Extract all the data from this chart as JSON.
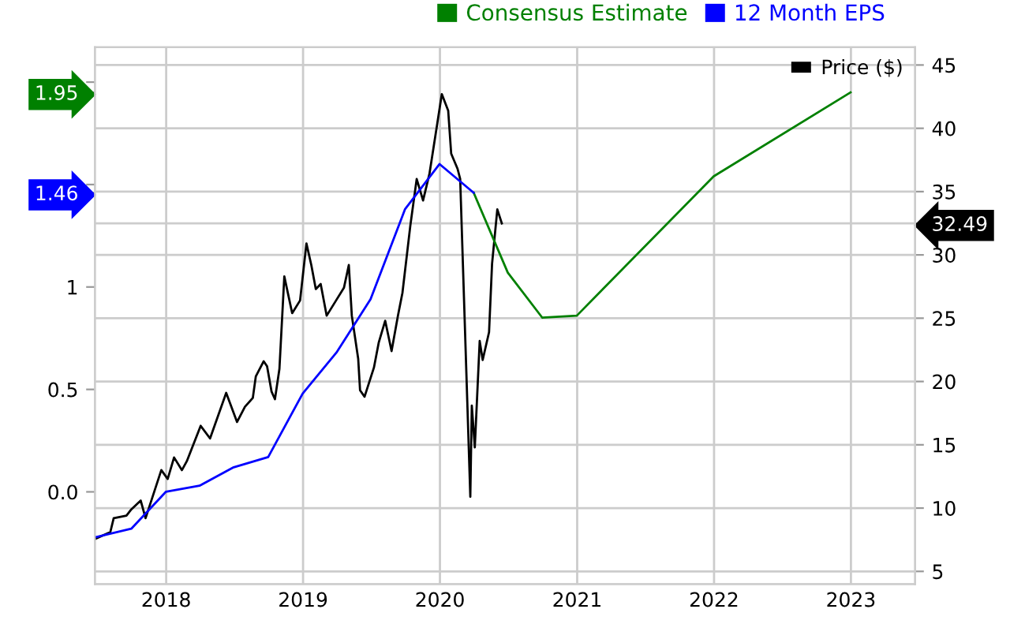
{
  "chart_data": {
    "type": "line",
    "series": [
      {
        "name": "Consensus Estimate",
        "color": "#008000",
        "x": [
          "2020-03-31",
          "2020-06-30",
          "2020-09-30",
          "2020-12-31",
          "2021-12-31",
          "2022-12-31"
        ],
        "values": [
          1.46,
          1.07,
          0.85,
          0.86,
          1.54,
          1.95
        ]
      },
      {
        "name": "12 Month EPS",
        "color": "#0000ff",
        "x": [
          "2017-06-30",
          "2017-09-30",
          "2017-12-31",
          "2018-03-31",
          "2018-06-30",
          "2018-09-30",
          "2018-12-31",
          "2019-03-31",
          "2019-06-30",
          "2019-09-30",
          "2019-12-31",
          "2020-03-31"
        ],
        "values": [
          -0.22,
          -0.18,
          0.0,
          0.03,
          0.12,
          0.17,
          0.48,
          0.68,
          0.94,
          1.38,
          1.6,
          1.46
        ]
      },
      {
        "name": "Price ($)",
        "color": "#000000",
        "axis": "y2",
        "x": [
          "2017-06-28",
          "2017-08-05",
          "2017-08-14",
          "2017-09-17",
          "2017-09-30",
          "2017-10-25",
          "2017-11-07",
          "2017-11-28",
          "2017-12-19",
          "2018-01-05",
          "2018-01-22",
          "2018-02-12",
          "2018-02-25",
          "2018-04-03",
          "2018-04-28",
          "2018-06-10",
          "2018-07-09",
          "2018-07-30",
          "2018-08-20",
          "2018-08-28",
          "2018-09-18",
          "2018-09-27",
          "2018-10-09",
          "2018-10-18",
          "2018-10-30",
          "2018-11-12",
          "2018-12-03",
          "2018-12-24",
          "2019-01-10",
          "2019-01-23",
          "2019-02-04",
          "2019-02-17",
          "2019-03-05",
          "2019-03-30",
          "2019-04-20",
          "2019-05-03",
          "2019-05-11",
          "2019-05-28",
          "2019-06-02",
          "2019-06-14",
          "2019-07-09",
          "2019-07-22",
          "2019-08-08",
          "2019-08-25",
          "2019-09-11",
          "2019-09-23",
          "2019-10-14",
          "2019-10-31",
          "2019-11-17",
          "2019-12-04",
          "2019-12-25",
          "2020-01-06",
          "2020-01-23",
          "2020-01-31",
          "2020-02-17",
          "2020-02-24",
          "2020-03-22",
          "2020-03-26",
          "2020-04-03",
          "2020-04-16",
          "2020-04-24",
          "2020-05-11",
          "2020-05-19",
          "2020-06-02",
          "2020-06-14"
        ],
        "values": [
          7.6,
          8.1,
          9.2,
          9.4,
          9.9,
          10.6,
          9.2,
          11.1,
          13.0,
          12.3,
          14.0,
          13.0,
          13.7,
          16.5,
          15.5,
          19.1,
          16.8,
          18.0,
          18.7,
          20.4,
          21.6,
          21.2,
          19.2,
          18.6,
          21.0,
          28.3,
          25.4,
          26.4,
          30.9,
          29.2,
          27.3,
          27.7,
          25.2,
          26.4,
          27.4,
          29.2,
          25.2,
          21.8,
          19.3,
          18.8,
          21.1,
          23.1,
          24.8,
          22.4,
          25.2,
          27.0,
          32.3,
          36.0,
          34.3,
          36.4,
          40.4,
          42.7,
          41.4,
          38.0,
          36.8,
          36.0,
          10.9,
          18.1,
          14.8,
          23.2,
          21.7,
          23.9,
          29.3,
          33.6,
          32.49
        ]
      }
    ],
    "xlim": [
      "2017-06-25",
      "2023-06-21"
    ],
    "xticks": [
      {
        "value": "2018-01-01",
        "label": "2018"
      },
      {
        "value": "2019-01-01",
        "label": "2019"
      },
      {
        "value": "2020-01-01",
        "label": "2020"
      },
      {
        "value": "2021-01-01",
        "label": "2021"
      },
      {
        "value": "2022-01-01",
        "label": "2022"
      },
      {
        "value": "2023-01-01",
        "label": "2023"
      }
    ],
    "ylim": [
      -0.45,
      2.17
    ],
    "yticks": [
      {
        "value": 0,
        "label": "0.0"
      },
      0.5,
      1,
      {
        "value": 1.5,
        "label": null
      },
      {
        "value": 2,
        "label": null
      },
      1.46,
      1.95
    ],
    "y2lim": [
      4.0,
      46.4
    ],
    "y2ticks": [
      5,
      10,
      15,
      20,
      25,
      30,
      35,
      40,
      45,
      32.49
    ],
    "grid": true,
    "legend": "top right",
    "line_style": "solid",
    "marker": "none"
  }
}
